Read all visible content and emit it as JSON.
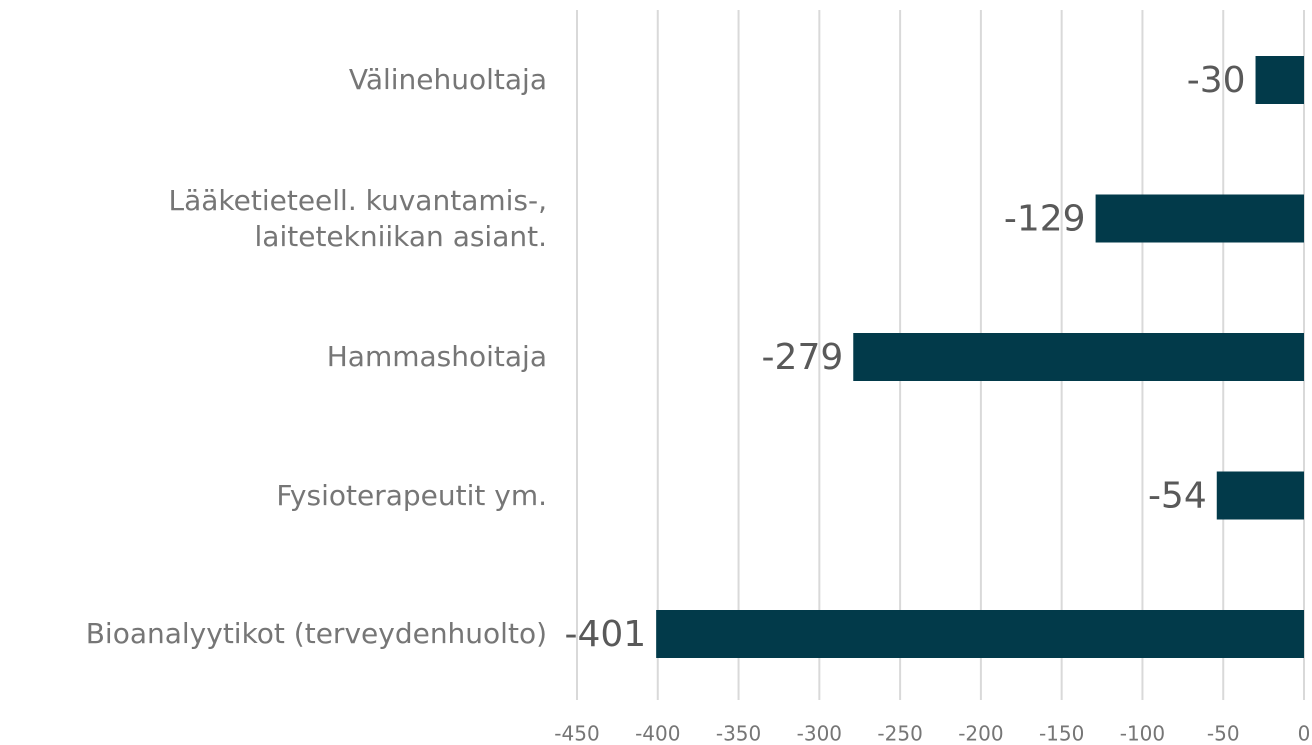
{
  "chart_data": {
    "type": "bar",
    "orientation": "horizontal",
    "categories": [
      "Välinehuoltaja",
      "Lääketieteell. kuvantamis-,\nlaitetekniikan asiant.",
      "Hammashoitaja",
      "Fysioterapeutit ym.",
      "Bioanalyytikot (terveydenhuolto)"
    ],
    "values": [
      -30,
      -129,
      -279,
      -54,
      -401
    ],
    "color": "#023a4a",
    "xlim": [
      -450,
      0
    ],
    "xticks": [
      -450,
      -400,
      -350,
      -300,
      -250,
      -200,
      -150,
      -100,
      -50,
      0
    ],
    "grid": true
  }
}
